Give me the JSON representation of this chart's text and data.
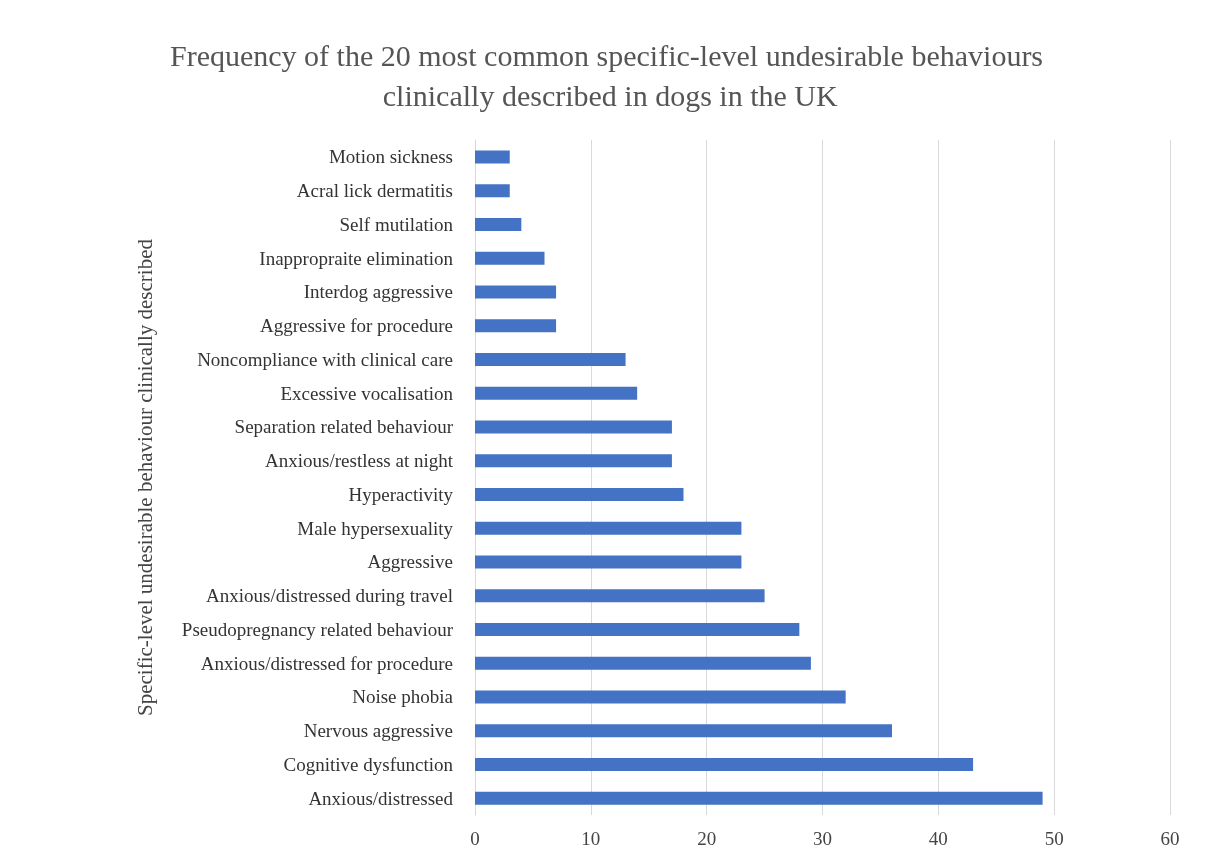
{
  "chart_data": {
    "type": "bar",
    "orientation": "horizontal",
    "title": "Frequency of the 20 most common specific-level undesirable behaviours clinically described in dogs in the UK",
    "ylabel": "Specific-level undesirable behaviour clinically described",
    "categories": [
      "Motion sickness",
      "Acral lick dermatitis",
      "Self mutilation",
      "Inappropraite elimination",
      "Interdog aggressive",
      "Aggressive for procedure",
      "Noncompliance with clinical care",
      "Excessive vocalisation",
      "Separation related behaviour",
      "Anxious/restless at night",
      "Hyperactivity",
      "Male hypersexuality",
      "Aggressive",
      "Anxious/distressed during travel",
      "Pseudopregnancy related behaviour",
      "Anxious/distressed for procedure",
      "Noise phobia",
      "Nervous aggressive",
      "Cognitive dysfunction",
      "Anxious/distressed"
    ],
    "values": [
      3,
      3,
      4,
      6,
      7,
      7,
      13,
      14,
      17,
      17,
      18,
      23,
      23,
      25,
      28,
      29,
      32,
      36,
      43,
      49
    ],
    "color": "#4472c4",
    "xlim": [
      0,
      60
    ],
    "xticks": [
      0,
      10,
      20,
      30,
      40,
      50,
      60
    ],
    "grid": "x"
  }
}
